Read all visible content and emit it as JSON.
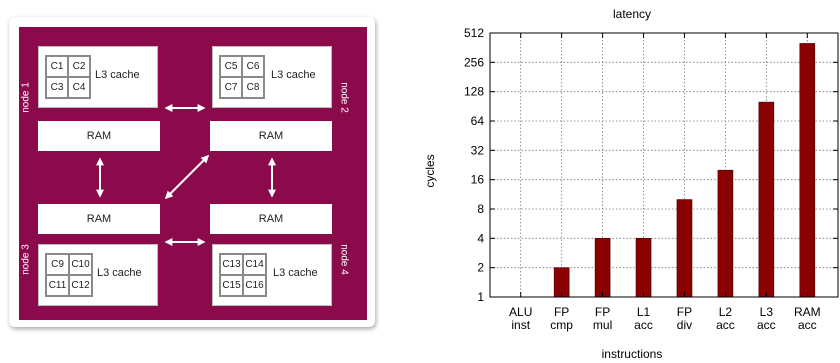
{
  "diagram": {
    "nodes": [
      {
        "label": "node 1",
        "cores": [
          "C1",
          "C2",
          "C3",
          "C4"
        ],
        "cache": "L3 cache",
        "ram": "RAM"
      },
      {
        "label": "node 2",
        "cores": [
          "C5",
          "C6",
          "C7",
          "C8"
        ],
        "cache": "L3 cache",
        "ram": "RAM"
      },
      {
        "label": "node 3",
        "cores": [
          "C9",
          "C10",
          "C11",
          "C12"
        ],
        "cache": "L3 cache",
        "ram": "RAM"
      },
      {
        "label": "node 4",
        "cores": [
          "C13",
          "C14",
          "C15",
          "C16"
        ],
        "cache": "L3 cache",
        "ram": "RAM"
      }
    ],
    "colors": {
      "background": "#8b0a4c",
      "box": "#ffffff"
    }
  },
  "chart_data": {
    "type": "bar",
    "title": "latency",
    "xlabel": "instructions",
    "ylabel": "cycles",
    "y_scale": "log2",
    "ylim": [
      1,
      512
    ],
    "yticks": [
      1,
      2,
      4,
      8,
      16,
      32,
      64,
      128,
      256,
      512
    ],
    "ytick_labels": [
      "1",
      "2",
      "4",
      "8",
      "16",
      "32",
      "64",
      "128",
      "256",
      "512"
    ],
    "categories": [
      [
        "ALU",
        "inst"
      ],
      [
        "FP",
        "cmp"
      ],
      [
        "FP",
        "mul"
      ],
      [
        "L1",
        "acc"
      ],
      [
        "FP",
        "div"
      ],
      [
        "L2",
        "acc"
      ],
      [
        "L3",
        "acc"
      ],
      [
        "RAM",
        "acc"
      ]
    ],
    "values": [
      1,
      2,
      4,
      4,
      10,
      20,
      100,
      400
    ],
    "grid": true,
    "bar_color": "#8b0000"
  }
}
